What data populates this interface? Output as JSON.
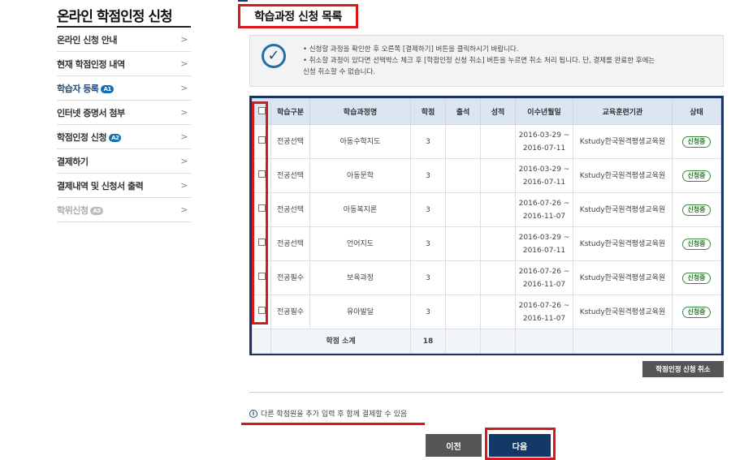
{
  "sidebar": {
    "title": "온라인 학점인정 신청",
    "items": [
      {
        "label": "온라인 신청 안내",
        "badge": ""
      },
      {
        "label": "현재 학점인정 내역",
        "badge": ""
      },
      {
        "label": "학습자 등록",
        "badge": "A1"
      },
      {
        "label": "인터넷 증명서 첨부",
        "badge": ""
      },
      {
        "label": "학점인정 신청",
        "badge": "A2"
      },
      {
        "label": "결제하기",
        "badge": ""
      },
      {
        "label": "결제내역 및 신청서 출력",
        "badge": ""
      },
      {
        "label": "학위신청",
        "badge": "A3"
      }
    ]
  },
  "main": {
    "title": "학습과정 신청 목록",
    "info": [
      "신청할 과정을 확인한 후 오른쪽 [결제하기] 버튼을 클릭하시기 바랍니다.",
      "취소할 과정이 있다면 선택박스 체크 후 [학점인정 신청 취소] 버튼을 누르면 취소 처리 됩니다. 단, 결제를 완료한 후에는",
      "신청 취소할 수 없습니다."
    ],
    "table": {
      "headers": [
        "학습구분",
        "학습과정명",
        "학점",
        "출석",
        "성적",
        "이수년월일",
        "교육훈련기관",
        "상태"
      ],
      "rows": [
        {
          "type": "전공선택",
          "name": "아동수학지도",
          "credit": "3",
          "start": "2016-03-29 ~",
          "end": "2016-07-11",
          "org": "Kstudy한국원격평생교육원",
          "status": "신청중"
        },
        {
          "type": "전공선택",
          "name": "아동문학",
          "credit": "3",
          "start": "2016-03-29 ~",
          "end": "2016-07-11",
          "org": "Kstudy한국원격평생교육원",
          "status": "신청중"
        },
        {
          "type": "전공선택",
          "name": "아동복지론",
          "credit": "3",
          "start": "2016-07-26 ~",
          "end": "2016-11-07",
          "org": "Kstudy한국원격평생교육원",
          "status": "신청중"
        },
        {
          "type": "전공선택",
          "name": "언어지도",
          "credit": "3",
          "start": "2016-03-29 ~",
          "end": "2016-07-11",
          "org": "Kstudy한국원격평생교육원",
          "status": "신청중"
        },
        {
          "type": "전공필수",
          "name": "보육과정",
          "credit": "3",
          "start": "2016-07-26 ~",
          "end": "2016-11-07",
          "org": "Kstudy한국원격평생교육원",
          "status": "신청중"
        },
        {
          "type": "전공필수",
          "name": "유아발달",
          "credit": "3",
          "start": "2016-07-26 ~",
          "end": "2016-11-07",
          "org": "Kstudy한국원격평생교육원",
          "status": "신청중"
        }
      ],
      "subtotal_label": "학점 소계",
      "subtotal": "18"
    },
    "cancel_label": "학점인정 신청 취소",
    "note": "다른 학점원을 추가 입력 후 함께 결제할 수 있음",
    "prev_label": "이전",
    "next_label": "다음"
  },
  "colors": {
    "accent": "#143866",
    "highlight": "#d7191c",
    "status": "#2f7a2f"
  }
}
